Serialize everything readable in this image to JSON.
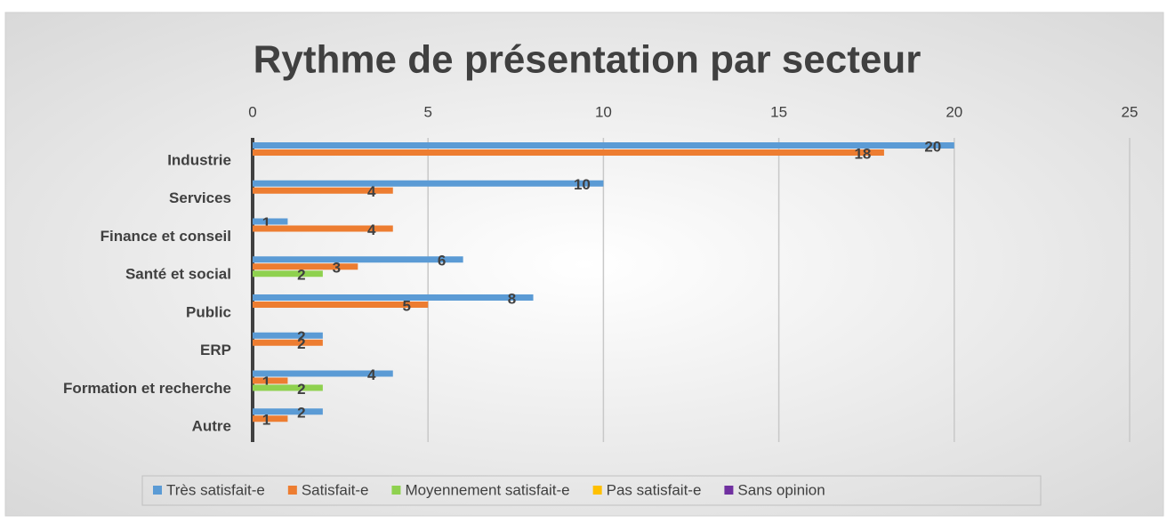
{
  "chart_data": {
    "type": "hbar",
    "title": "Rythme de présentation par secteur",
    "categories": [
      "Industrie",
      "Services",
      "Finance et conseil",
      "Santé et social",
      "Public",
      "ERP",
      "Formation et recherche",
      "Autre"
    ],
    "series": [
      {
        "name": "Très satisfait-e",
        "color": "#5b9bd5",
        "values": [
          20,
          10,
          1,
          6,
          8,
          2,
          4,
          2
        ]
      },
      {
        "name": "Satisfait-e",
        "color": "#ed7d31",
        "values": [
          18,
          4,
          4,
          3,
          5,
          2,
          1,
          1
        ]
      },
      {
        "name": "Moyennement satisfait-e",
        "color": "#8fd14f",
        "values": [
          null,
          null,
          null,
          2,
          null,
          null,
          2,
          null
        ]
      },
      {
        "name": "Pas satisfait-e",
        "color": "#ffc000",
        "values": [
          null,
          null,
          null,
          null,
          null,
          null,
          null,
          null
        ]
      },
      {
        "name": "Sans opinion",
        "color": "#7030a0",
        "values": [
          null,
          null,
          null,
          null,
          null,
          null,
          null,
          null
        ]
      }
    ],
    "xlim": [
      0,
      25
    ],
    "xticks": [
      0,
      5,
      10,
      15,
      20,
      25
    ],
    "grid": true,
    "legend": "bottom"
  }
}
